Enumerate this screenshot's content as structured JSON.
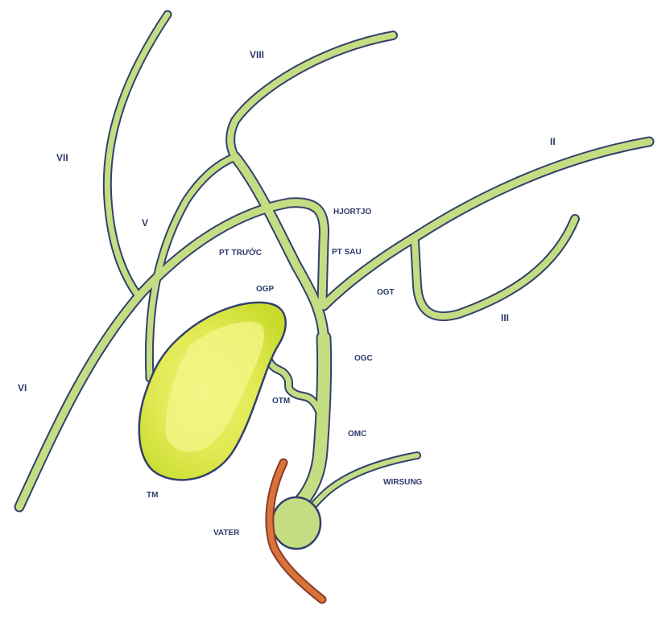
{
  "colors": {
    "duct_fill": "#c5dd82",
    "duct_outline": "#33416e",
    "gallbladder_outer": "#cfe03a",
    "gallbladder_inner": "#ecf070",
    "duodenum": "#d8733a",
    "label": "#2e3a6e"
  },
  "labels": {
    "vi": "VI",
    "vii": "VII",
    "viii": "VIII",
    "v": "V",
    "ii": "II",
    "iii": "III",
    "hjortjo": "HJORTJO",
    "pt_truoc": "PT TRƯỚC",
    "pt_sau": "PT SAU",
    "ogp": "OGP",
    "ogt": "OGT",
    "ogc": "OGC",
    "otm": "OTM",
    "omc": "OMC",
    "tm": "TM",
    "wirsung": "WIRSUNG",
    "vater": "VATER"
  }
}
